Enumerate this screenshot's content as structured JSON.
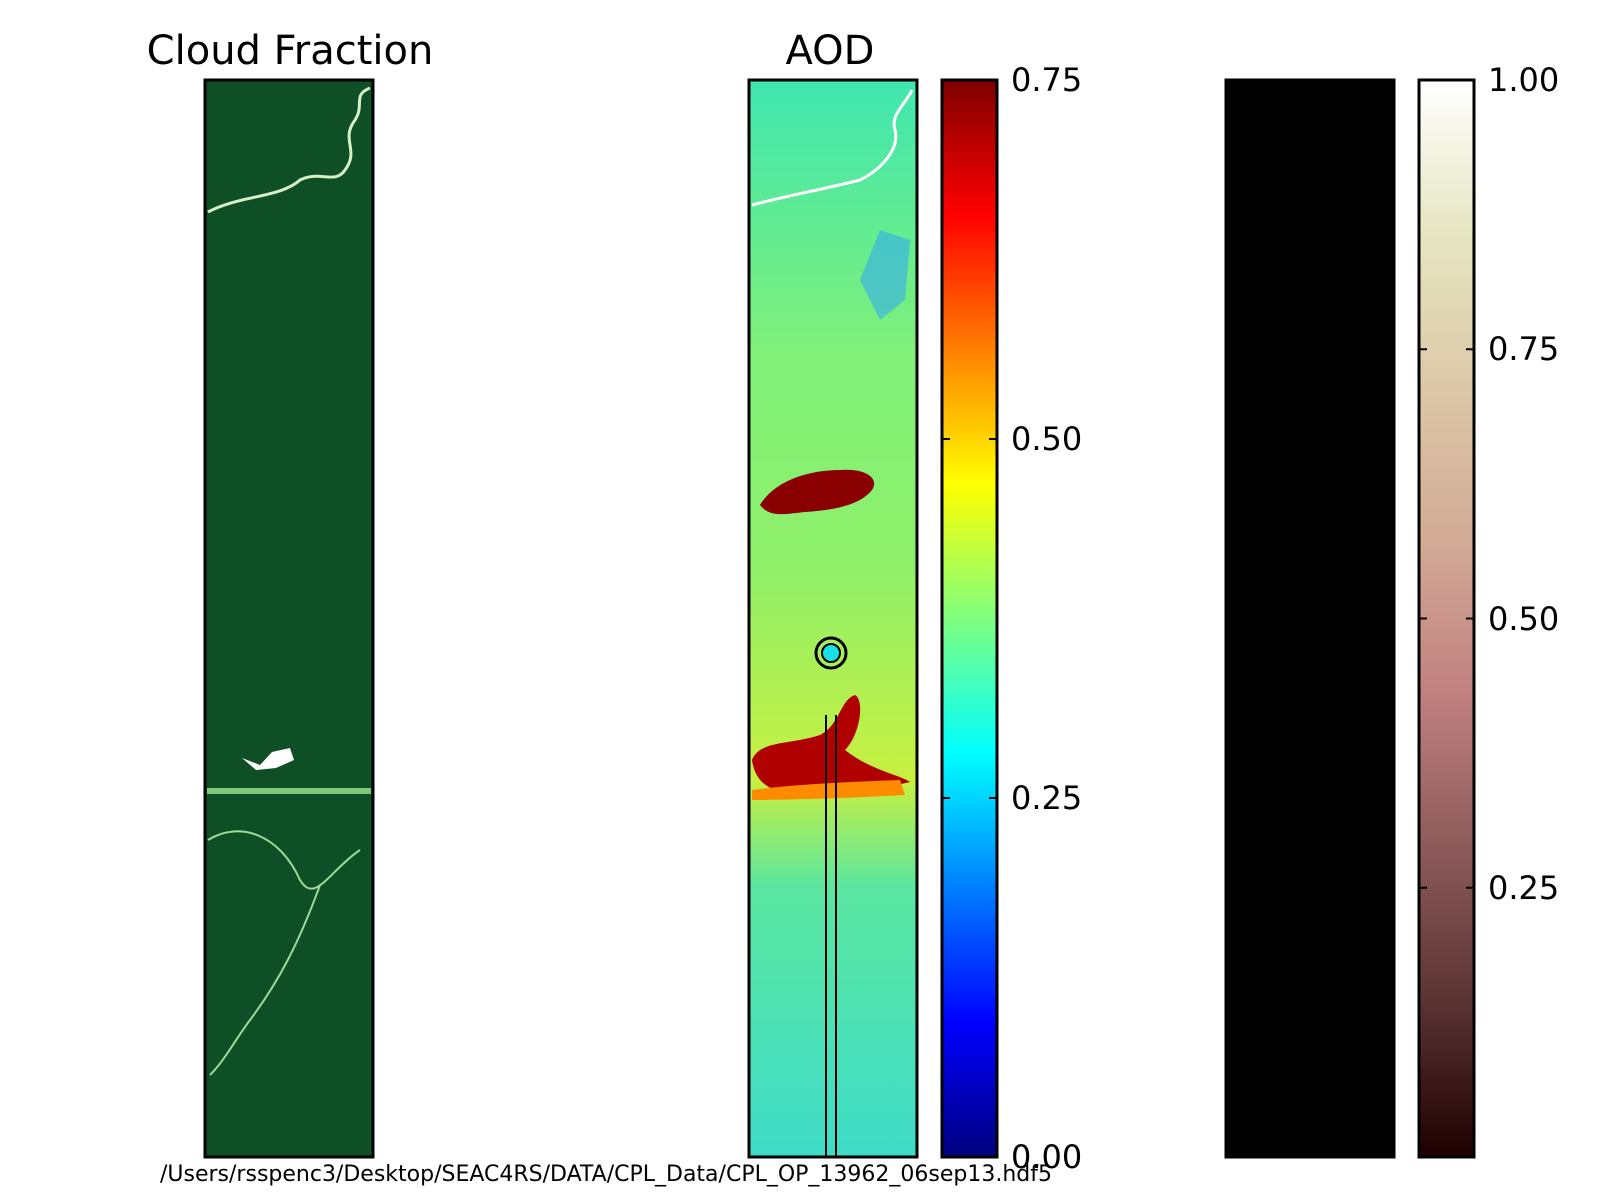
{
  "figure": {
    "caption": "/Users/rsspenc3/Desktop/SEAC4RS/DATA/CPL_Data/CPL_OP_13962_06sep13.hdf5"
  },
  "chart_data": [
    {
      "type": "heatmap",
      "title": "Cloud Fraction",
      "colormap": "Greens",
      "dominant_color": "#0e4f26",
      "highlight_color": "#d7f0c8",
      "axes_visible": false,
      "colorbar": false
    },
    {
      "type": "heatmap",
      "title": "AOD",
      "colormap": "jet",
      "background_value": 0.35,
      "highlights": [
        {
          "name": "",
          "value": 0.75
        },
        {
          "name": "",
          "value": 0.75
        }
      ],
      "marker": {
        "value": 0.3,
        "style": "circle"
      },
      "colorbar": {
        "range": [
          0.0,
          0.75
        ],
        "ticks": [
          0.0,
          0.25,
          0.5,
          0.75
        ],
        "tick_labels": [
          "0.00",
          "0.25",
          "0.50",
          "0.75"
        ],
        "stops": [
          "#00007f",
          "#0000ff",
          "#007fff",
          "#00ffff",
          "#7fff7f",
          "#ffff00",
          "#ff7f00",
          "#ff0000",
          "#7f0000"
        ]
      }
    },
    {
      "type": "heatmap",
      "title": "",
      "colormap": "pink",
      "dominant_value": 0.0,
      "colorbar": {
        "range": [
          0.0,
          1.0
        ],
        "ticks": [
          0.25,
          0.5,
          0.75,
          1.0
        ],
        "tick_labels": [
          "0.25",
          "0.50",
          "0.75",
          "1.00"
        ],
        "stops": [
          "#1e0000",
          "#5a3333",
          "#8c5a5a",
          "#c08080",
          "#d2aa96",
          "#dcc8a8",
          "#e6e6c2",
          "#ffffff"
        ]
      }
    }
  ]
}
